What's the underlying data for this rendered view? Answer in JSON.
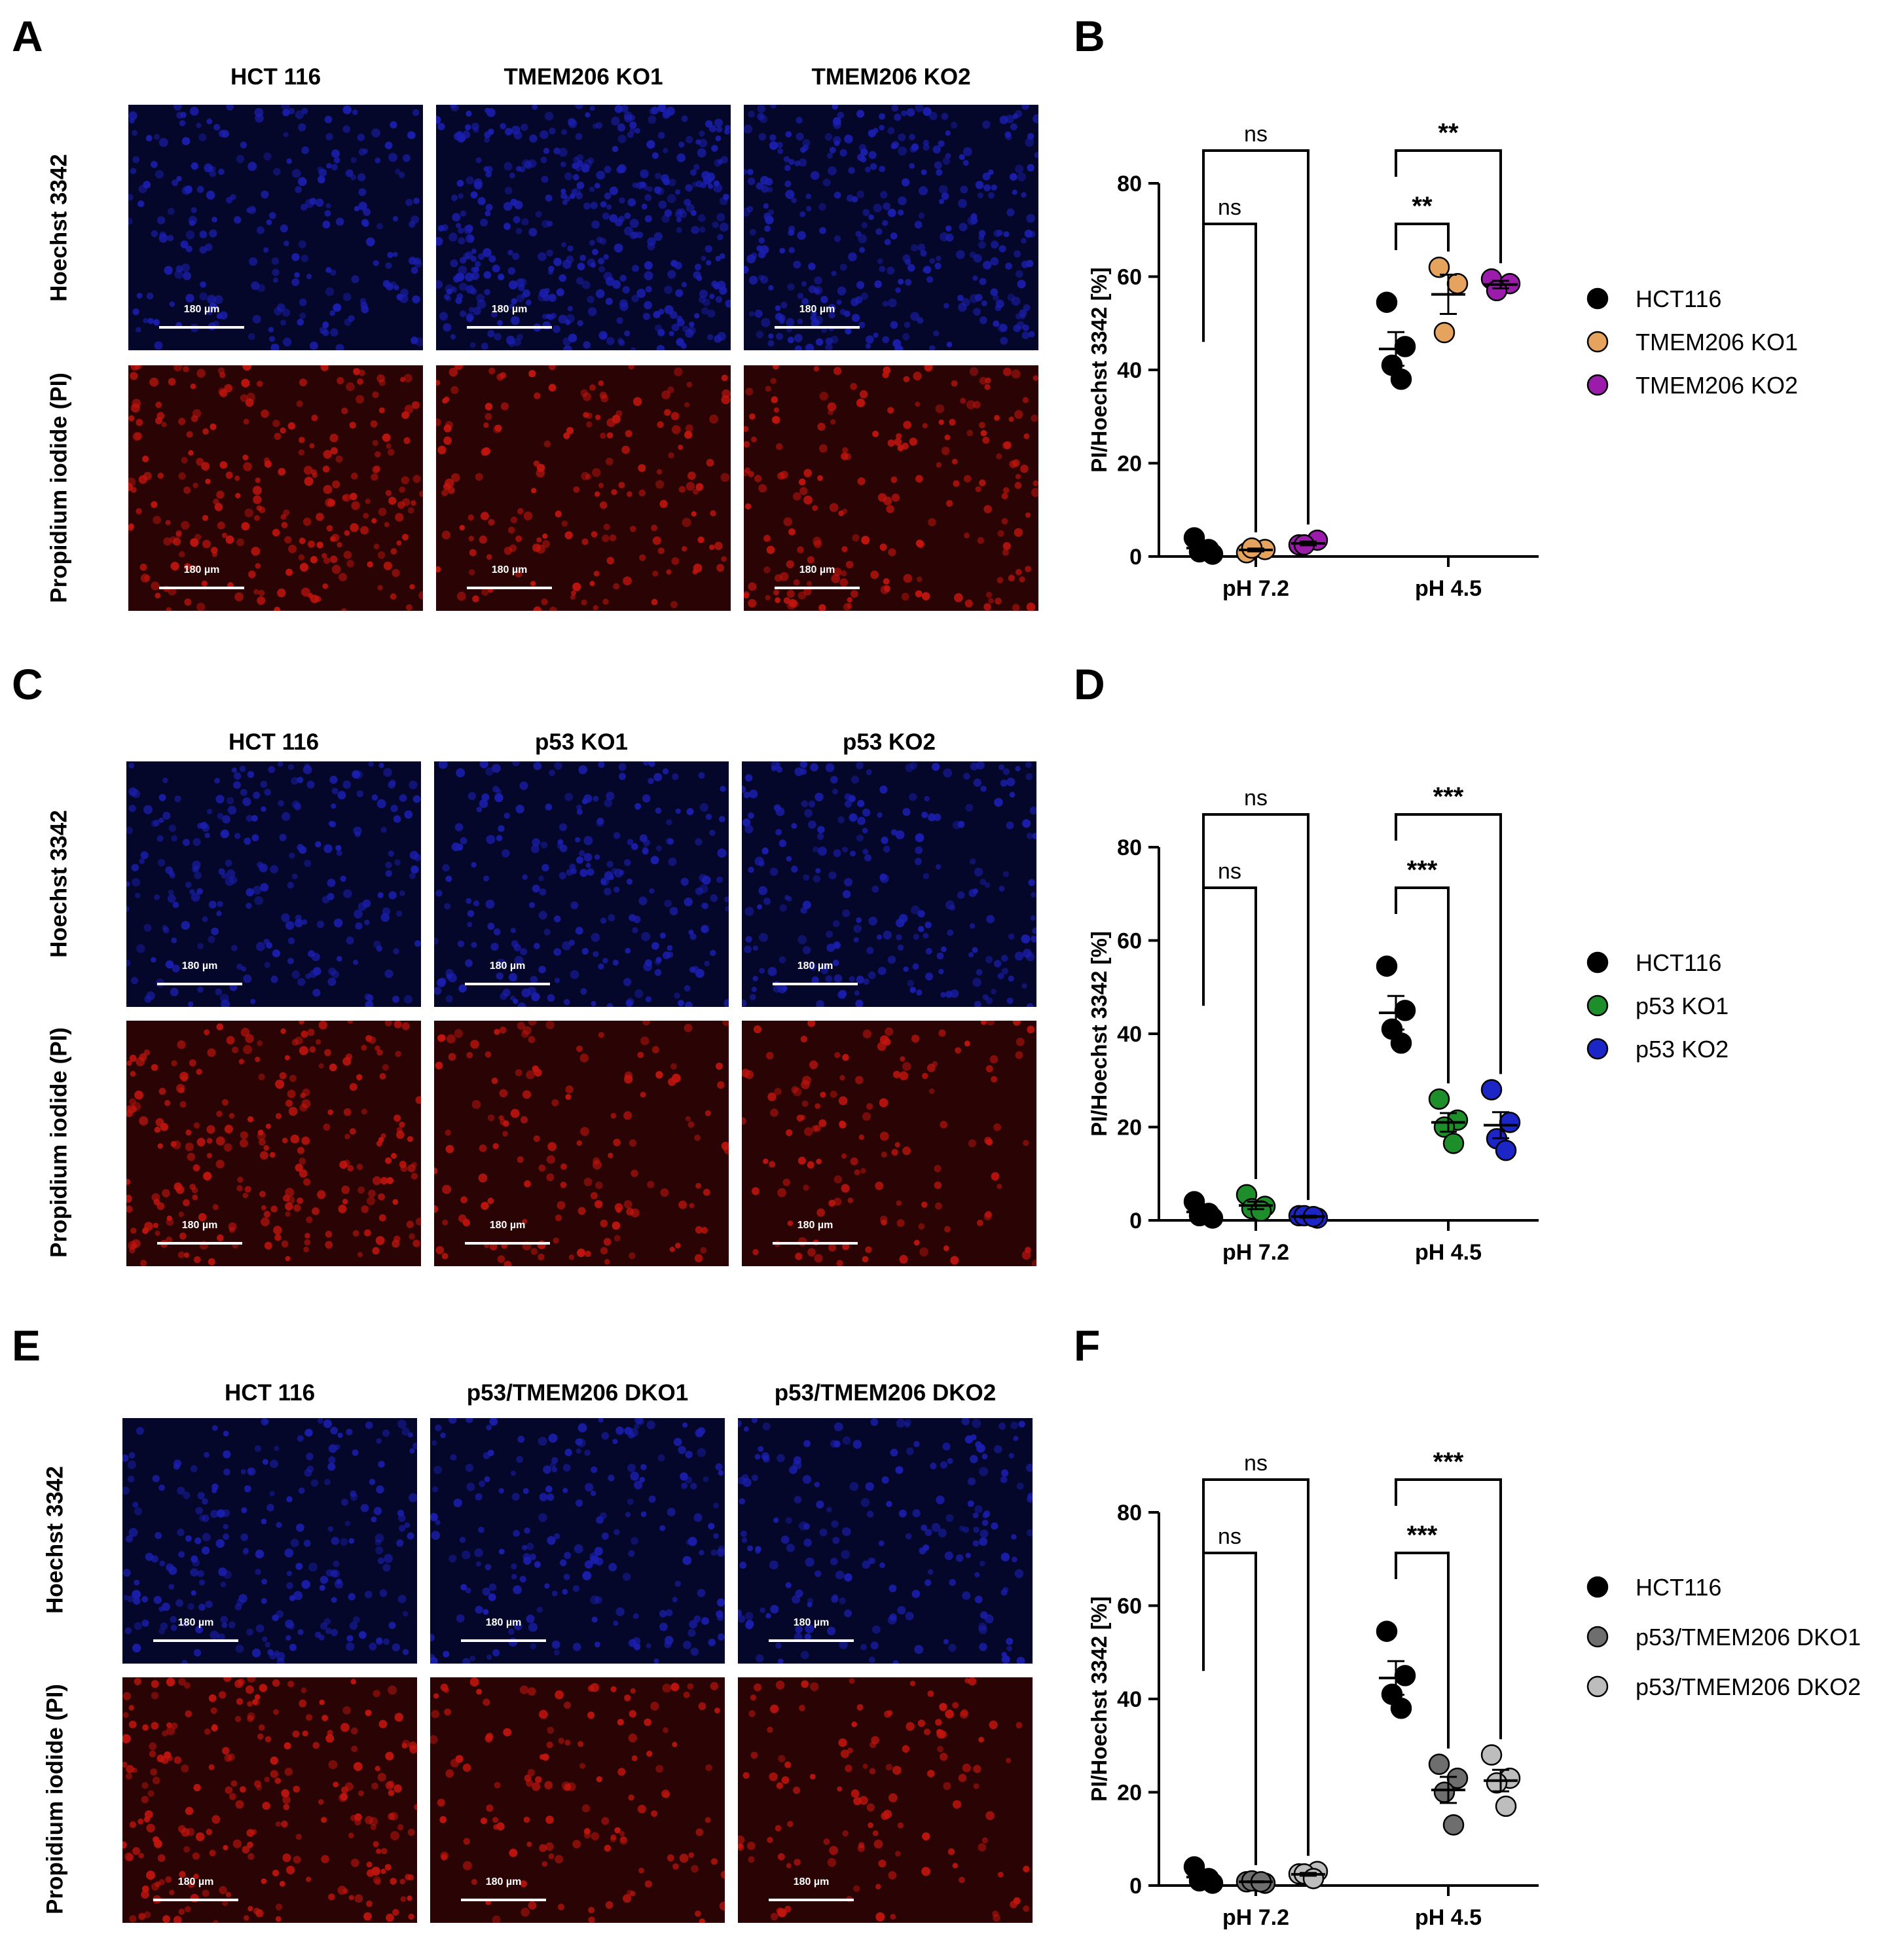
{
  "panels": {
    "A": "A",
    "B": "B",
    "C": "C",
    "D": "D",
    "E": "E",
    "F": "F"
  },
  "row_labels": {
    "hoechst": "Hoechst 3342",
    "pi": "Propidium iodide (PI)"
  },
  "scale_label": "180 µm",
  "image_rows": [
    {
      "titles": [
        "HCT 116",
        "TMEM206 KO1",
        "TMEM206 KO2"
      ]
    },
    {
      "titles": [
        "HCT 116",
        "p53 KO1",
        "p53 KO2"
      ]
    },
    {
      "titles": [
        "HCT 116",
        "p53/TMEM206 DKO1",
        "p53/TMEM206 DKO2"
      ]
    }
  ],
  "colors": {
    "hoechst_bg": "#05072a",
    "hoechst_cell": "#1b1fb0",
    "pi_bg": "#2a0404",
    "pi_cell": "#c4150f"
  },
  "chart_data": [
    {
      "type": "scatter",
      "title": "",
      "ylabel": "PI/Hoechst 3342 [%]",
      "ylim": [
        0,
        80
      ],
      "yticks": [
        "0",
        "20",
        "40",
        "60",
        "80"
      ],
      "categories": [
        "pH 7.2",
        "pH 4.5"
      ],
      "series": [
        {
          "name": "HCT116",
          "color": "#000000",
          "values": [
            [
              4,
              0.5,
              1,
              1.5
            ],
            [
              54.5,
              45,
              41,
              38
            ]
          ],
          "mean": [
            1.8,
            44.5
          ],
          "sem": [
            0.8,
            3.6
          ]
        },
        {
          "name": "TMEM206 KO1",
          "color": "#e6a35e",
          "values": [
            [
              0.8,
              1.5,
              1.8
            ],
            [
              62,
              58.5,
              48
            ]
          ],
          "mean": [
            1.4,
            56.2
          ],
          "sem": [
            0.3,
            4.2
          ]
        },
        {
          "name": "TMEM206 KO2",
          "color": "#9b1cab",
          "values": [
            [
              2.5,
              3.5,
              2.5
            ],
            [
              59.5,
              58.5,
              57
            ]
          ],
          "mean": [
            2.8,
            58.3
          ],
          "sem": [
            0.4,
            0.8
          ]
        }
      ],
      "significance": [
        {
          "label": "ns",
          "group": 0,
          "from": 0,
          "to": 1
        },
        {
          "label": "ns",
          "group": 0,
          "from": 0,
          "to": 2
        },
        {
          "label": "**",
          "group": 1,
          "from": 0,
          "to": 1
        },
        {
          "label": "**",
          "group": 1,
          "from": 0,
          "to": 2
        }
      ]
    },
    {
      "type": "scatter",
      "title": "",
      "ylabel": "PI/Hoechst 3342 [%]",
      "ylim": [
        0,
        80
      ],
      "yticks": [
        "0",
        "20",
        "40",
        "60",
        "80"
      ],
      "categories": [
        "pH 7.2",
        "pH 4.5"
      ],
      "series": [
        {
          "name": "HCT116",
          "color": "#000000",
          "values": [
            [
              4,
              0.5,
              1,
              1.5
            ],
            [
              54.5,
              45,
              41,
              38
            ]
          ],
          "mean": [
            1.8,
            44.5
          ],
          "sem": [
            0.8,
            3.6
          ]
        },
        {
          "name": "p53 KO1",
          "color": "#1e8e2a",
          "values": [
            [
              5.5,
              3,
              2.5,
              2
            ],
            [
              26,
              21.5,
              20,
              16.5
            ]
          ],
          "mean": [
            3.2,
            21.0
          ],
          "sem": [
            0.8,
            2.0
          ]
        },
        {
          "name": "p53 KO2",
          "color": "#1c26c6",
          "values": [
            [
              1,
              0.5,
              1,
              0.8
            ],
            [
              28,
              21,
              17.5,
              15
            ]
          ],
          "mean": [
            0.8,
            20.4
          ],
          "sem": [
            0.2,
            2.8
          ]
        }
      ],
      "significance": [
        {
          "label": "ns",
          "group": 0,
          "from": 0,
          "to": 1
        },
        {
          "label": "ns",
          "group": 0,
          "from": 0,
          "to": 2
        },
        {
          "label": "***",
          "group": 1,
          "from": 0,
          "to": 1
        },
        {
          "label": "***",
          "group": 1,
          "from": 0,
          "to": 2
        }
      ]
    },
    {
      "type": "scatter",
      "title": "",
      "ylabel": "PI/Hoechst 3342 [%]",
      "ylim": [
        0,
        80
      ],
      "yticks": [
        "0",
        "20",
        "40",
        "60",
        "80"
      ],
      "categories": [
        "pH 7.2",
        "pH 4.5"
      ],
      "series": [
        {
          "name": "HCT116",
          "color": "#000000",
          "values": [
            [
              4,
              0.5,
              1,
              1.5
            ],
            [
              54.5,
              45,
              41,
              38
            ]
          ],
          "mean": [
            1.8,
            44.5
          ],
          "sem": [
            0.8,
            3.6
          ]
        },
        {
          "name": "p53/TMEM206 DKO1",
          "color": "#6e6e6e",
          "values": [
            [
              0.8,
              0.5,
              1,
              0.8
            ],
            [
              26,
              23,
              20,
              13
            ]
          ],
          "mean": [
            0.8,
            20.5
          ],
          "sem": [
            0.1,
            2.8
          ]
        },
        {
          "name": "p53/TMEM206 DKO2",
          "color": "#bdbdbd",
          "values": [
            [
              2.5,
              3,
              2.5,
              1.5
            ],
            [
              28,
              23,
              22,
              17
            ]
          ],
          "mean": [
            2.4,
            22.5
          ],
          "sem": [
            0.3,
            2.3
          ]
        }
      ],
      "significance": [
        {
          "label": "ns",
          "group": 0,
          "from": 0,
          "to": 1
        },
        {
          "label": "ns",
          "group": 0,
          "from": 0,
          "to": 2
        },
        {
          "label": "***",
          "group": 1,
          "from": 0,
          "to": 1
        },
        {
          "label": "***",
          "group": 1,
          "from": 0,
          "to": 2
        }
      ]
    }
  ]
}
